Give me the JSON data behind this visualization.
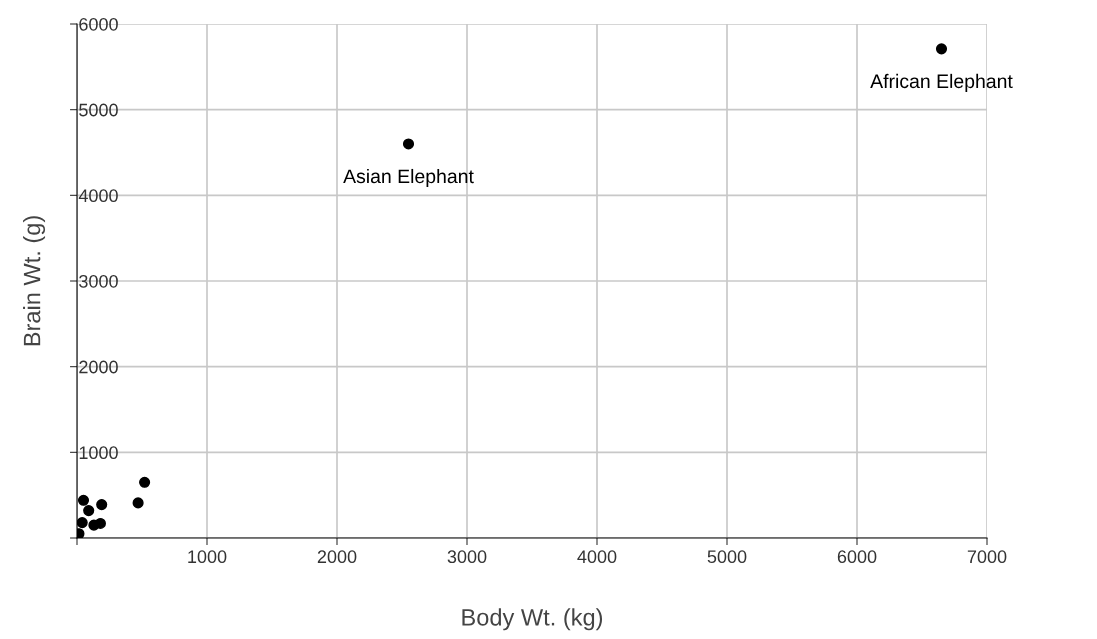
{
  "chart_data": {
    "type": "scatter",
    "xlabel": "Body Wt. (kg)",
    "ylabel": "Brain Wt. (g)",
    "x": [
      6650,
      2550,
      520,
      470,
      50,
      190,
      90,
      180,
      15,
      40,
      130
    ],
    "series": [
      {
        "color": "#000000",
        "values": [
          5710,
          4600,
          650,
          410,
          440,
          390,
          320,
          170,
          50,
          180,
          150
        ]
      }
    ],
    "xlim": [
      0,
      7000
    ],
    "ylim": [
      0,
      6000
    ],
    "xticks": [
      {
        "value": 0,
        "label": null
      },
      1000,
      2000,
      3000,
      4000,
      5000,
      6000,
      7000
    ],
    "yticks": [
      {
        "value": 0,
        "label": null
      },
      1000,
      2000,
      3000,
      4000,
      5000,
      6000
    ],
    "grid": true,
    "marker": "circle",
    "annotations": [
      {
        "text": "African Elephant",
        "x": 6650,
        "y": 5710
      },
      {
        "text": "Asian Elephant",
        "x": 2550,
        "y": 4600
      }
    ]
  }
}
